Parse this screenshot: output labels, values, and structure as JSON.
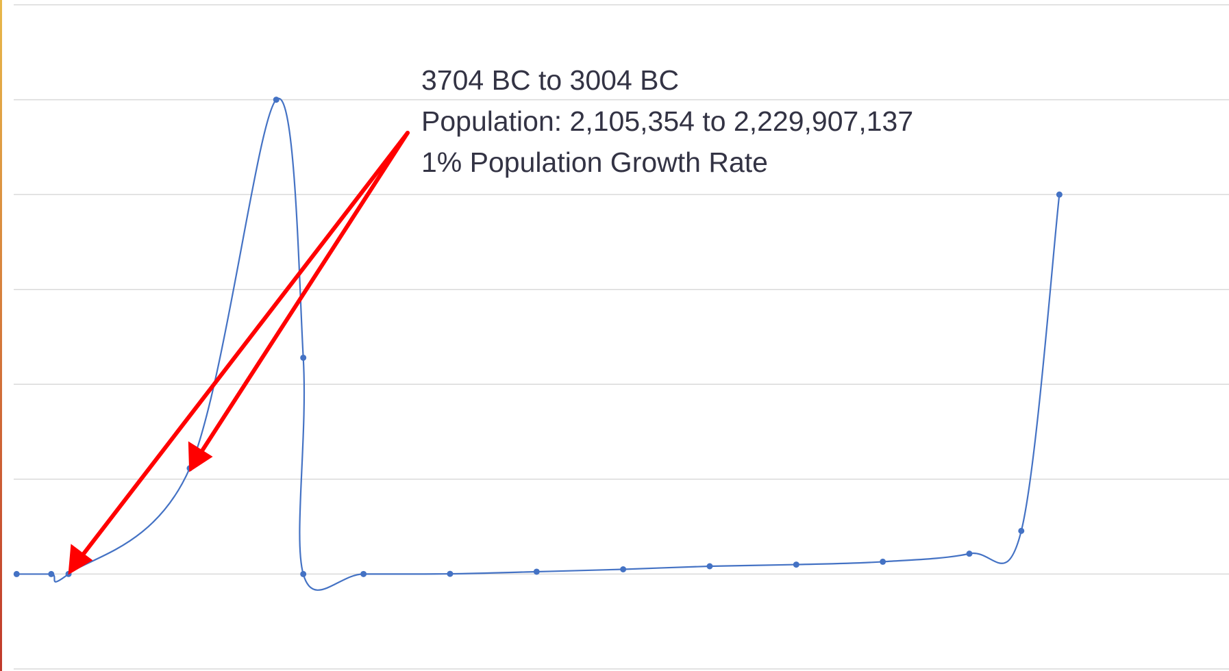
{
  "chart_data": {
    "type": "line",
    "annotation": [
      "3704 BC to 3004 BC",
      "Population: 2,105,354 to 2,229,907,137",
      "1% Population Growth Rate"
    ],
    "x": [
      -4004,
      -3804,
      -3704,
      -3004,
      -2504,
      -2348,
      -2348,
      -2000,
      -1500,
      -1000,
      -500,
      0,
      500,
      1000,
      1500,
      1800,
      2020
    ],
    "series": [
      {
        "color": "#4472c4",
        "values": [
          2,
          2000,
          2105354,
          2229907137,
          10000000000,
          4560000000,
          8,
          1000000,
          5000000,
          50000000,
          100000000,
          165000000,
          200000000,
          260000000,
          430000000,
          910000000,
          8000000000
        ]
      }
    ],
    "xlim": [
      -4100,
      3000
    ],
    "ylim": [
      -2000000000,
      12000000000
    ],
    "yticks": [
      -2000000000,
      0,
      2000000000,
      4000000000,
      6000000000,
      8000000000,
      10000000000,
      12000000000
    ],
    "grid": true,
    "annotation_color": "#333344",
    "arrow_color": "#ff0000"
  }
}
